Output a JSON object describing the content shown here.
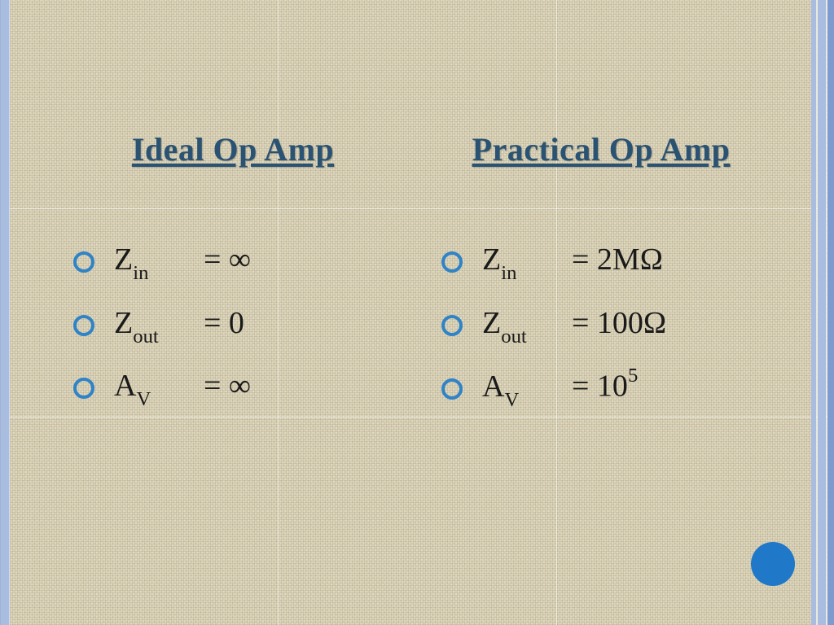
{
  "style": {
    "bg_base": "#e3dcc1",
    "grid_line": "rgba(255,255,255,0.55)",
    "stripe_blue": "#a9bde0",
    "stripe_blue_dark": "#7e9bd0",
    "heading_color": "#2a5273",
    "text_color": "#1a1a1a",
    "bullet_color": "#2f83c6",
    "dot_color": "#1f78c8",
    "grid_v": [
      341,
      683
    ],
    "grid_h": [
      256,
      512
    ]
  },
  "left": {
    "heading": "Ideal Op Amp",
    "rows": [
      {
        "base": "Z",
        "sub": "in",
        "rhs": "= ∞"
      },
      {
        "base": "Z",
        "sub": "out",
        "rhs": "= 0"
      },
      {
        "base": "A",
        "sub": "V",
        "rhs": "= ∞"
      }
    ]
  },
  "right": {
    "heading": "Practical Op Amp",
    "rows": [
      {
        "base": "Z",
        "sub": "in",
        "rhs": "= 2MΩ"
      },
      {
        "base": "Z",
        "sub": "out",
        "rhs": "= 100Ω"
      },
      {
        "base": "A",
        "sub": "V",
        "rhs_base": "= 10",
        "rhs_sup": "5"
      }
    ]
  }
}
